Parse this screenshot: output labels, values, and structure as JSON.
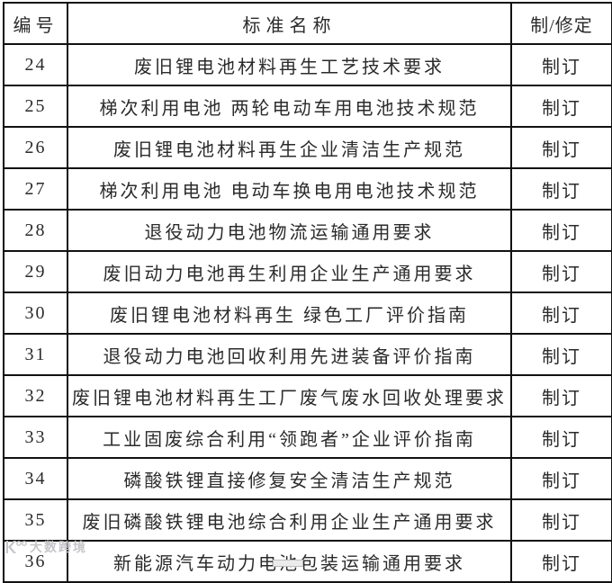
{
  "table": {
    "columns": [
      {
        "key": "id",
        "label": "编号"
      },
      {
        "key": "name",
        "label": "标准名称"
      },
      {
        "key": "status",
        "label": "制/修定"
      }
    ],
    "rows": [
      {
        "id": "24",
        "name": "废旧锂电池材料再生工艺技术要求",
        "status": "制订"
      },
      {
        "id": "25",
        "name": "梯次利用电池 两轮电动车用电池技术规范",
        "status": "制订"
      },
      {
        "id": "26",
        "name": "废旧锂电池材料再生企业清洁生产规范",
        "status": "制订"
      },
      {
        "id": "27",
        "name": "梯次利用电池 电动车换电用电池技术规范",
        "status": "制订"
      },
      {
        "id": "28",
        "name": "退役动力电池物流运输通用要求",
        "status": "制订"
      },
      {
        "id": "29",
        "name": "废旧动力电池再生利用企业生产通用要求",
        "status": "制订"
      },
      {
        "id": "30",
        "name": "废旧锂电池材料再生 绿色工厂评价指南",
        "status": "制订"
      },
      {
        "id": "31",
        "name": "退役动力电池回收利用先进装备评价指南",
        "status": "制订"
      },
      {
        "id": "32",
        "name": "废旧锂电池材料再生工厂废气废水回收处理要求",
        "status": "制订"
      },
      {
        "id": "33",
        "name": "工业固废综合利用“领跑者”企业评价指南",
        "status": "制订"
      },
      {
        "id": "34",
        "name": "磷酸铁锂直接修复安全清洁生产规范",
        "status": "制订"
      },
      {
        "id": "35",
        "name": "废旧磷酸铁锂电池综合利用企业生产通用要求",
        "status": "制订"
      },
      {
        "id": "36",
        "name": "新能源汽车动力电池包装运输通用要求",
        "status": "制订"
      }
    ]
  },
  "watermark": {
    "text": "大数跨境"
  },
  "colors": {
    "background": "#ffffff",
    "border": "#111111",
    "text": "#2b2b2b",
    "watermark": "#c6c6ca"
  }
}
